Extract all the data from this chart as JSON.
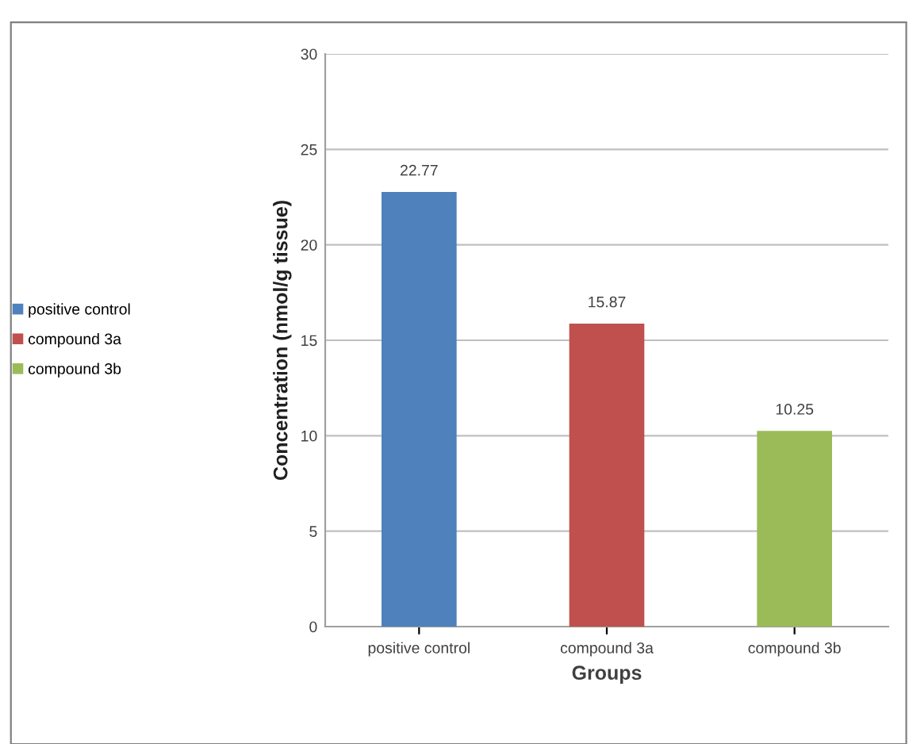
{
  "chart_data": {
    "type": "bar",
    "xlabel": "Groups",
    "ylabel": "Concentration (nmol/g tissue)",
    "categories": [
      "positive control",
      "compound 3a",
      "compound 3b"
    ],
    "series": [
      {
        "name": "positive control",
        "color": "#4f81bd",
        "values": [
          22.77,
          null,
          null
        ]
      },
      {
        "name": "compound 3a",
        "color": "#c0504d",
        "values": [
          null,
          15.87,
          null
        ]
      },
      {
        "name": "compound 3b",
        "color": "#9bbb59",
        "values": [
          null,
          null,
          10.25
        ]
      }
    ],
    "ylim": [
      0,
      30
    ],
    "yticks": [
      0,
      5,
      10,
      15,
      20,
      25,
      30
    ],
    "grid": "y",
    "data_labels": true,
    "legend": "left"
  }
}
